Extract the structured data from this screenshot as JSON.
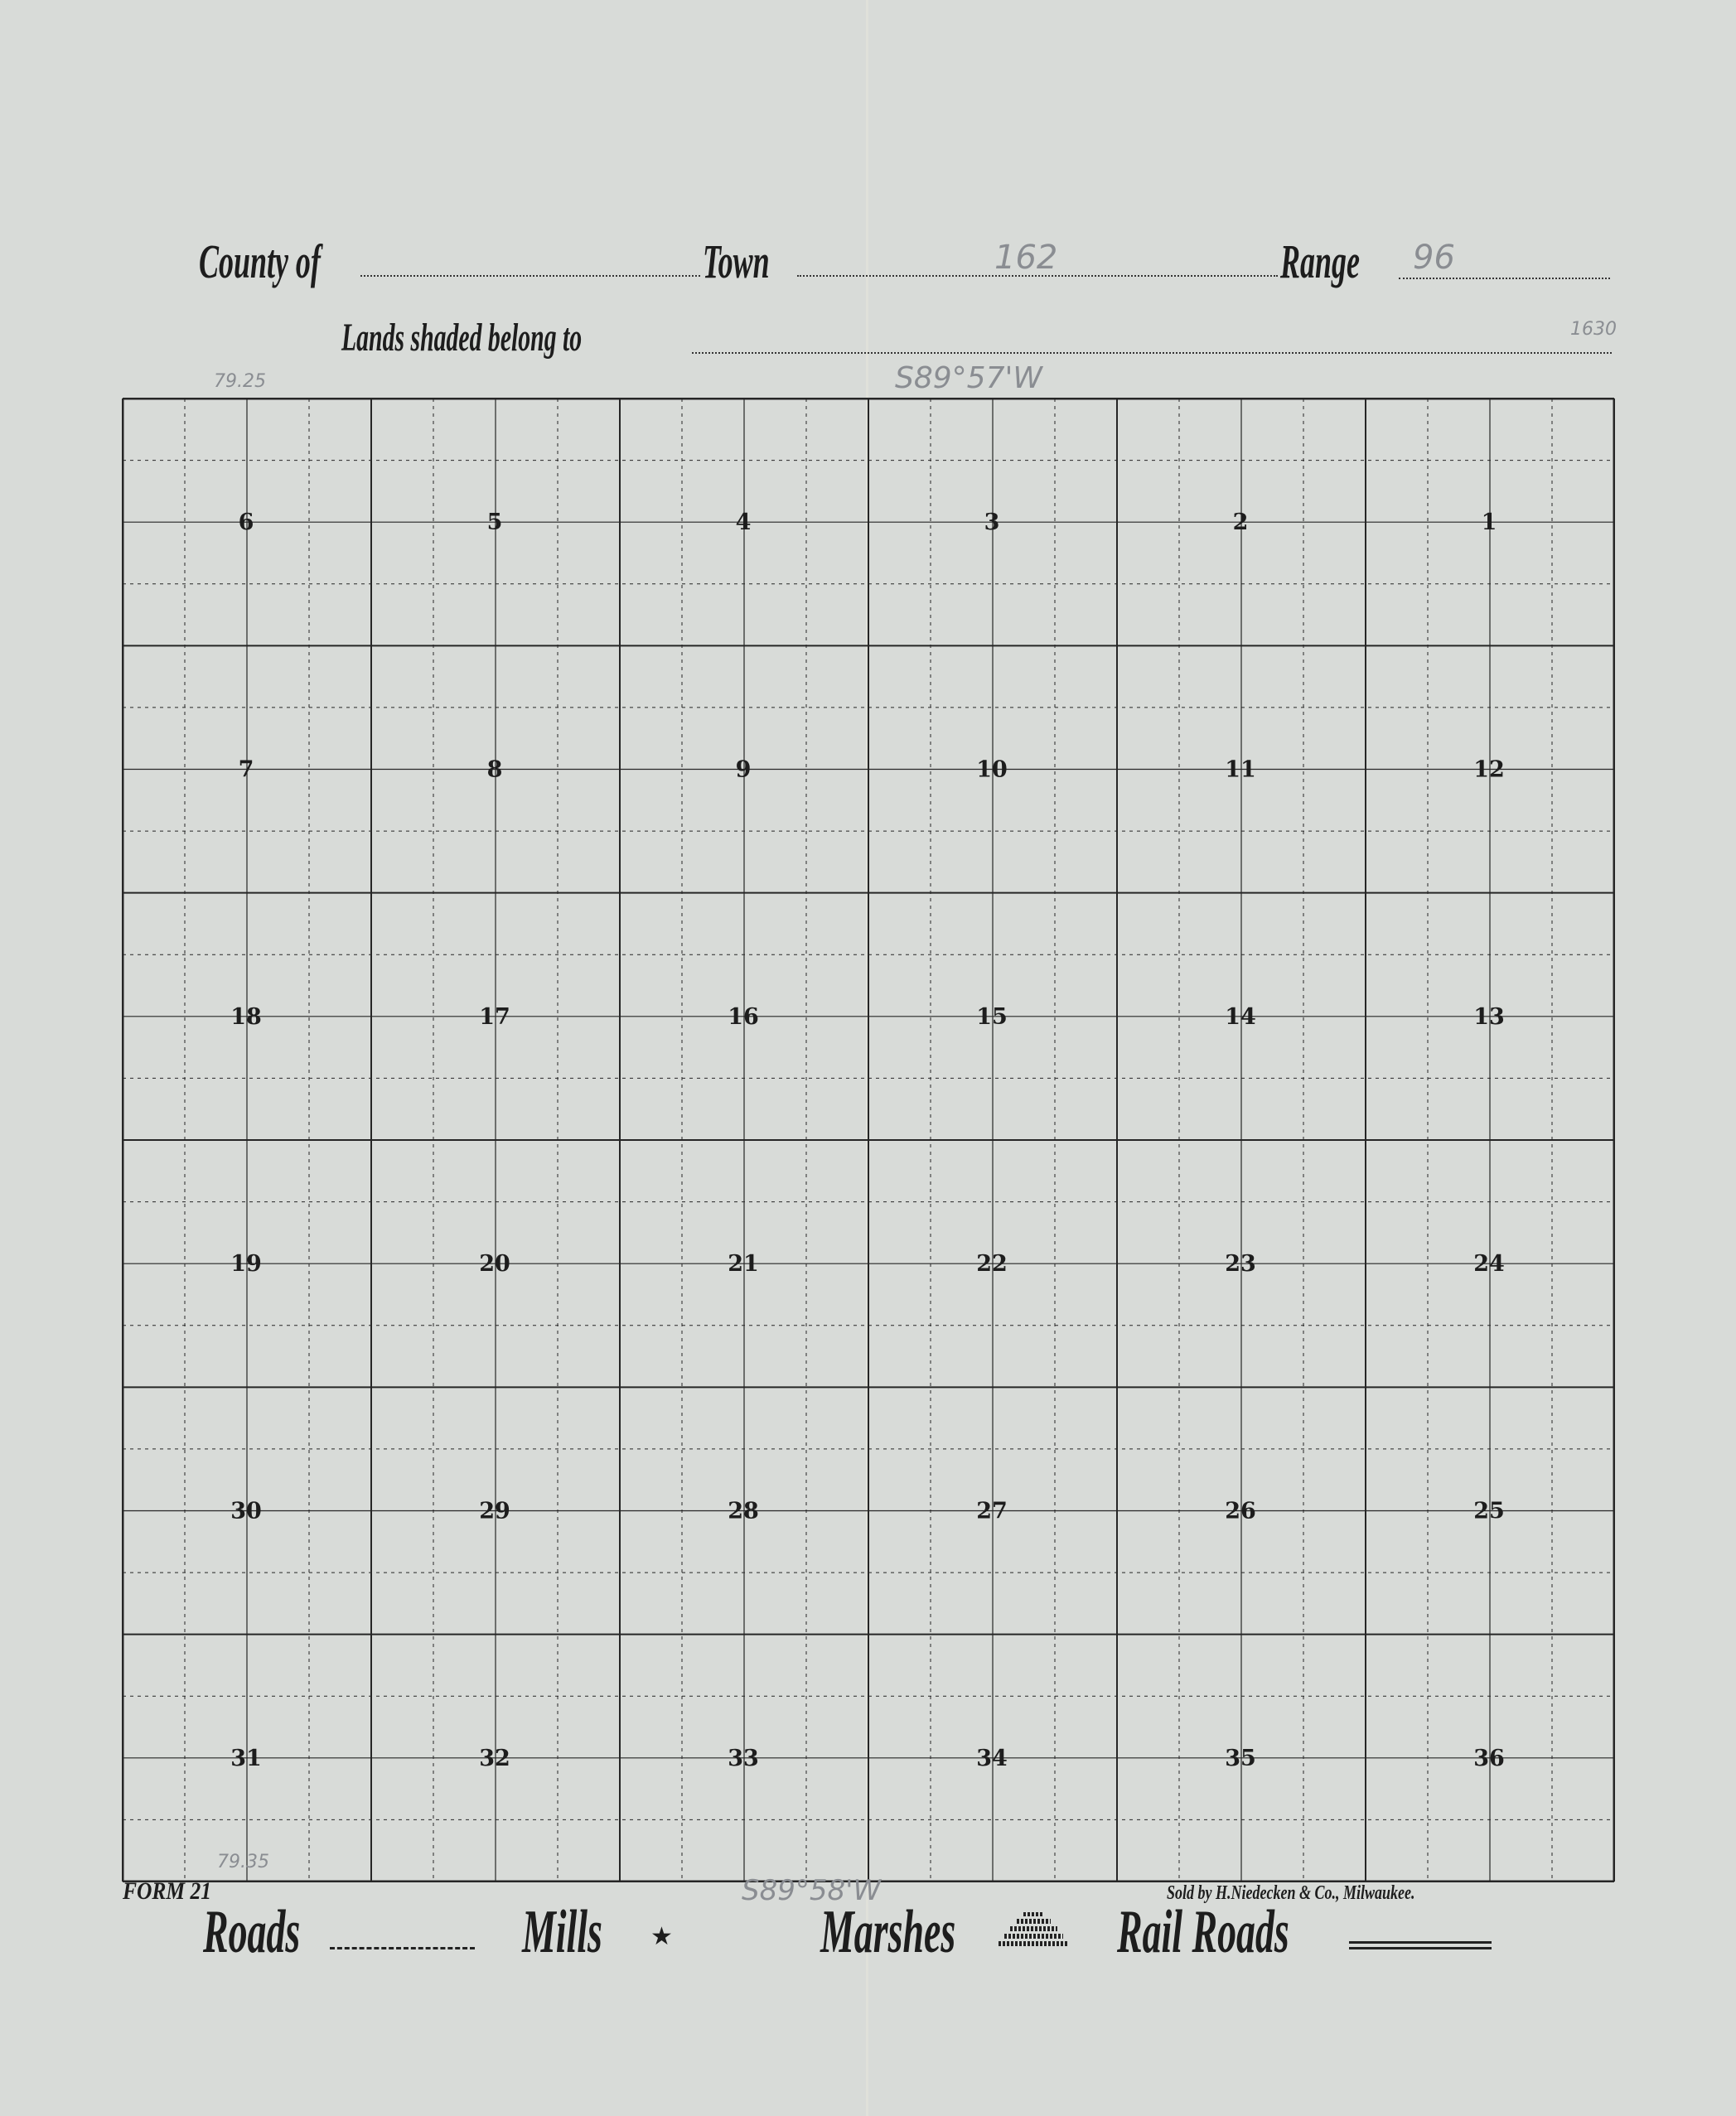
{
  "header": {
    "county_label": "County of",
    "county_value": "",
    "town_label": "Town",
    "town_value": "162",
    "range_label": "Range",
    "range_value": "96",
    "lands_label": "Lands shaded belong to",
    "lands_value": ""
  },
  "sections": [
    [
      6,
      5,
      4,
      3,
      2,
      1
    ],
    [
      7,
      8,
      9,
      10,
      11,
      12
    ],
    [
      18,
      17,
      16,
      15,
      14,
      13
    ],
    [
      19,
      20,
      21,
      22,
      23,
      24
    ],
    [
      30,
      29,
      28,
      27,
      26,
      25
    ],
    [
      31,
      32,
      33,
      34,
      35,
      36
    ]
  ],
  "annotations": {
    "top_bearing": "S89°57'W",
    "bottom_bearing": "S89°58'W",
    "top_left_chain": "79.25",
    "bottom_left_chain": "79.35",
    "margin_note": "1630"
  },
  "footer": {
    "form": "FORM 21",
    "seller": "Sold by H.Niedecken & Co., Milwaukee.",
    "legend": {
      "roads": "Roads",
      "mills": "Mills",
      "marshes": "Marshes",
      "railroads": "Rail Roads"
    }
  },
  "colors": {
    "paper": "#d8dbd8",
    "ink": "#1d1d1d",
    "pencil": "#8a8d92"
  }
}
